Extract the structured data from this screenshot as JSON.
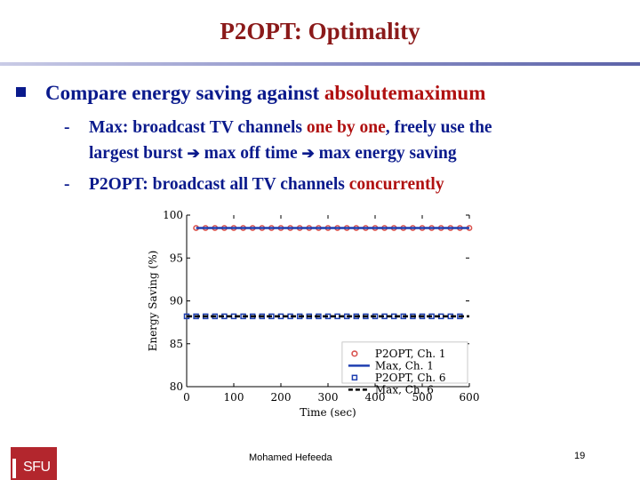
{
  "slide": {
    "title": "P2OPT: Optimality",
    "bullet": {
      "text_a": "Compare energy saving against ",
      "text_red": "absolutemaximum"
    },
    "sub1": {
      "dash": "-",
      "a": "Max: broadcast TV channels ",
      "red": "one by one",
      "b": ", freely use the",
      "line2_a": "largest burst ",
      "line2_b": " max off time ",
      "line2_c": " max energy saving",
      "arrow": "➔"
    },
    "sub2": {
      "dash": "-",
      "a": "P2OPT: broadcast all TV channels ",
      "red": "concurrently"
    },
    "footer": {
      "author": "Mohamed Hefeeda",
      "page": "19",
      "logo": "SFU"
    }
  },
  "colors": {
    "title": "#8b1a1a",
    "body": "#0a1a8c",
    "accent": "#b01010",
    "series_red": "#d9534f",
    "series_blue": "#1f3fb0",
    "series_black": "#000000"
  },
  "chart_data": {
    "type": "line",
    "xlabel": "Time (sec)",
    "ylabel": "Energy Saving (%)",
    "xlim": [
      0,
      600
    ],
    "ylim": [
      80,
      100
    ],
    "xticks": [
      0,
      100,
      200,
      300,
      400,
      500,
      600
    ],
    "yticks": [
      80,
      85,
      90,
      95,
      100
    ],
    "legend_position": "bottom-right",
    "series": [
      {
        "name": "P2OPT, Ch. 1",
        "style": "marker-circle",
        "color": "#d9534f",
        "x_start": 20,
        "x_end": 600,
        "x_step": 20,
        "value": 98.5
      },
      {
        "name": "Max, Ch. 1",
        "style": "solid-line",
        "color": "#1f3fb0",
        "x_start": 20,
        "x_end": 600,
        "value": 98.5
      },
      {
        "name": "P2OPT, Ch. 6",
        "style": "marker-square",
        "color": "#1f3fb0",
        "x_start": 0,
        "x_end": 580,
        "x_step": 20,
        "value": 88.2
      },
      {
        "name": "Max, Ch. 6",
        "style": "dashed-line",
        "color": "#000000",
        "x_start": 0,
        "x_end": 600,
        "value": 88.2
      }
    ]
  }
}
